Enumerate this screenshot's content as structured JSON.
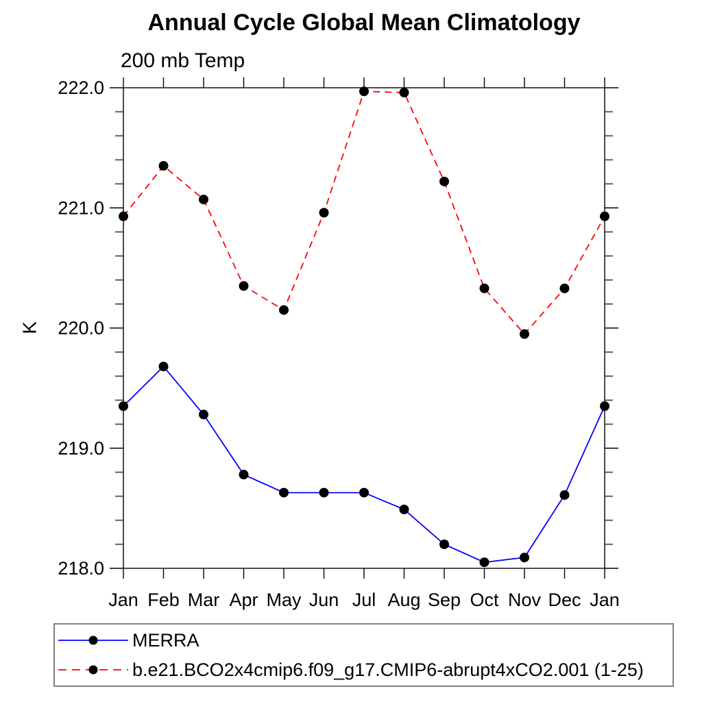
{
  "chart_data": {
    "type": "line",
    "title": "Annual Cycle Global Mean Climatology",
    "subtitle": "200 mb Temp",
    "ylabel": "K",
    "categories": [
      "Jan",
      "Feb",
      "Mar",
      "Apr",
      "May",
      "Jun",
      "Jul",
      "Aug",
      "Sep",
      "Oct",
      "Nov",
      "Dec",
      "Jan"
    ],
    "ylim": [
      218.0,
      222.0
    ],
    "ytick_major": [
      218.0,
      219.0,
      220.0,
      221.0,
      222.0
    ],
    "ytick_labels": [
      "218.0",
      "219.0",
      "220.0",
      "221.0",
      "222.0"
    ],
    "yminor_step": 0.2,
    "grid": false,
    "legend_position": "bottom-left",
    "axis_color": "#000000",
    "series": [
      {
        "name": "MERRA",
        "color": "#0000ff",
        "line_style": "solid",
        "marker": "circle",
        "marker_color": "#000000",
        "values": [
          219.35,
          219.68,
          219.28,
          218.78,
          218.63,
          218.63,
          218.63,
          218.49,
          218.2,
          218.05,
          218.09,
          218.61,
          219.35
        ]
      },
      {
        "name": "b.e21.BCO2x4cmip6.f09_g17.CMIP6-abrupt4xCO2.001 (1-25)",
        "color": "#ff0000",
        "line_style": "dashed",
        "marker": "circle",
        "marker_color": "#000000",
        "values": [
          220.93,
          221.35,
          221.07,
          220.35,
          220.15,
          220.96,
          221.97,
          221.96,
          221.22,
          220.33,
          219.95,
          220.33,
          220.93
        ]
      }
    ]
  }
}
